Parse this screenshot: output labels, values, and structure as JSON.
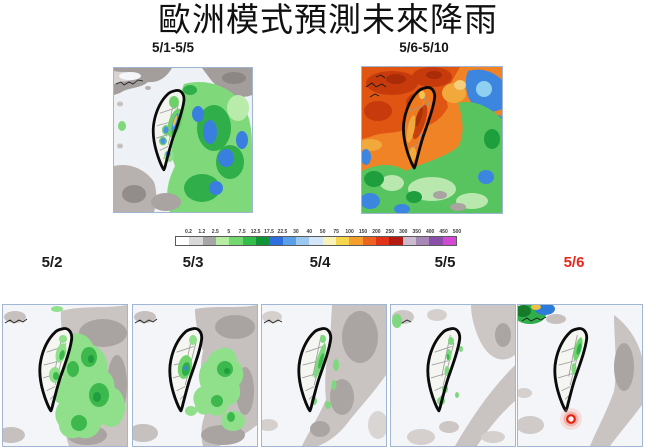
{
  "title": "歐洲模式預測未來降雨",
  "top_row": {
    "maps": [
      {
        "label": "5/1-5/5"
      },
      {
        "label": "5/6-5/10"
      }
    ]
  },
  "colorbar": {
    "tick_labels": [
      "0.2",
      "1.2",
      "2.5",
      "5",
      "7.5",
      "12.5",
      "17.5",
      "22.5",
      "30",
      "40",
      "50",
      "75",
      "100",
      "150",
      "200",
      "250",
      "300",
      "350",
      "400",
      "450",
      "500"
    ],
    "segment_colors": [
      "#ffffff",
      "#d9d9d9",
      "#a6a6a6",
      "#b5eda3",
      "#74d86f",
      "#35bd4b",
      "#119438",
      "#2f6ede",
      "#5aa0e8",
      "#9cc8f0",
      "#d3e6f8",
      "#f8f2b8",
      "#f5d64c",
      "#f5a02c",
      "#ef6320",
      "#e2331a",
      "#b31a12",
      "#c9bccf",
      "#a687b5",
      "#8a4fa8",
      "#d24ad2"
    ]
  },
  "daily_labels": [
    {
      "label": "5/2",
      "color": "#1a1a1a"
    },
    {
      "label": "5/3",
      "color": "#1a1a1a"
    },
    {
      "label": "5/4",
      "color": "#1a1a1a"
    },
    {
      "label": "5/5",
      "color": "#1a1a1a"
    },
    {
      "label": "5/6",
      "color": "#e8281e"
    }
  ]
}
